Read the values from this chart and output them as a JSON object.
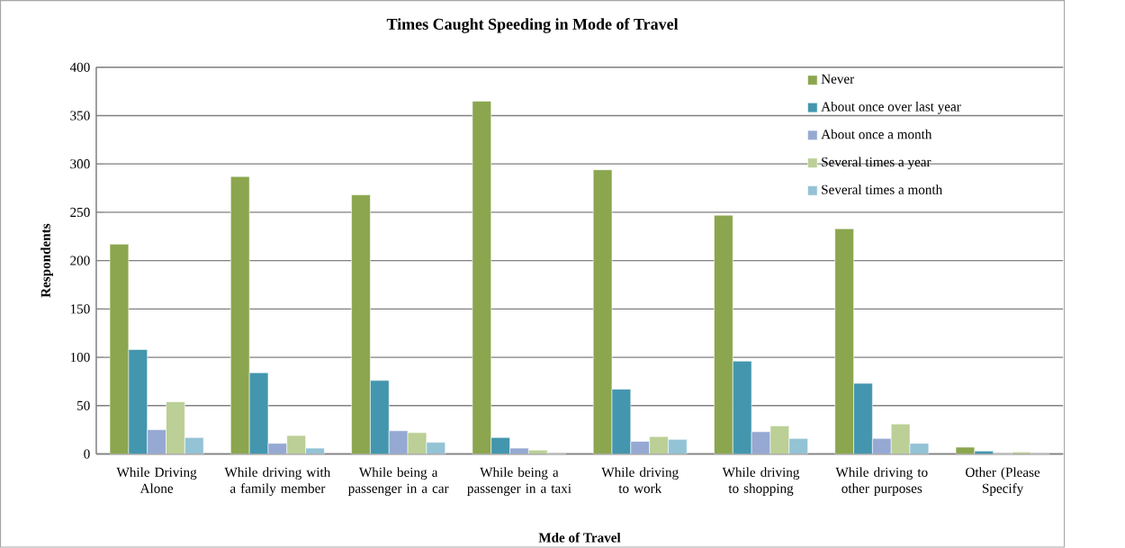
{
  "chart_data": {
    "type": "bar",
    "title": "Times Caught Speeding in Mode of Travel",
    "xlabel": "Mde of Travel",
    "ylabel": "Respondents",
    "categories": [
      "While Driving Alone",
      "While driving with a family member",
      "While being a passenger in a car",
      "While being a passenger in a taxi",
      "While driving to work",
      "While driving to shopping",
      "While driving to other purposes",
      "Other (Please Specify"
    ],
    "series": [
      {
        "name": "Never",
        "color": "#8ba64e",
        "values": [
          217,
          287,
          268,
          365,
          294,
          247,
          233,
          7
        ]
      },
      {
        "name": "About once over last year",
        "color": "#4396ae",
        "values": [
          108,
          84,
          76,
          17,
          67,
          96,
          73,
          3
        ]
      },
      {
        "name": "About once a month",
        "color": "#95a9d2",
        "values": [
          25,
          11,
          24,
          6,
          13,
          23,
          16,
          0
        ]
      },
      {
        "name": "Several times a year",
        "color": "#bbcf96",
        "values": [
          54,
          19,
          22,
          4,
          18,
          29,
          31,
          2
        ]
      },
      {
        "name": "Several times a month",
        "color": "#93c3d5",
        "values": [
          17,
          6,
          12,
          0,
          15,
          16,
          11,
          0
        ]
      }
    ],
    "ylim": [
      0,
      400
    ],
    "yticks": [
      0,
      50,
      100,
      150,
      200,
      250,
      300,
      350,
      400
    ],
    "grid": "y",
    "legend": "top right"
  }
}
